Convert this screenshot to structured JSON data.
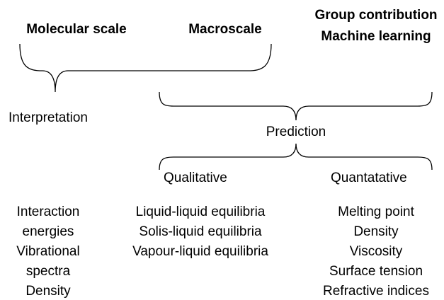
{
  "top": {
    "molecular": "Molecular scale",
    "macro": "Macroscale",
    "methods": [
      "Group contribution",
      "Machine learning"
    ]
  },
  "interpretation": {
    "label": "Interpretation",
    "items": [
      "Interaction",
      "energies",
      "Vibrational",
      "spectra",
      "Density"
    ]
  },
  "prediction": {
    "label": "Prediction",
    "qualitative": {
      "label": "Qualitative",
      "items": [
        "Liquid-liquid equilibria",
        "Solis-liquid equilibria",
        "Vapour-liquid equilibria"
      ]
    },
    "quantitative": {
      "label": "Quantatative",
      "items": [
        "Melting point",
        "Density",
        "Viscosity",
        "Surface tension",
        "Refractive indices"
      ]
    }
  }
}
